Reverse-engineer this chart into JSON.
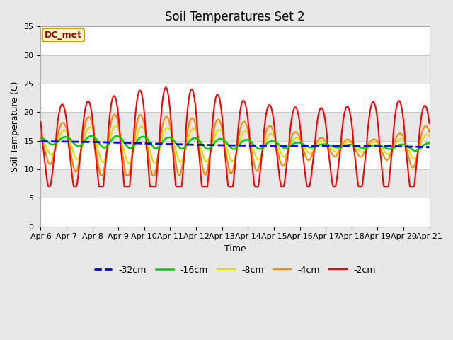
{
  "title": "Soil Temperatures Set 2",
  "xlabel": "Time",
  "ylabel": "Soil Temperature (C)",
  "ylim": [
    0,
    35
  ],
  "x_tick_labels": [
    "Apr 6",
    "Apr 7",
    "Apr 8",
    "Apr 9",
    "Apr 10",
    "Apr 11",
    "Apr 12",
    "Apr 13",
    "Apr 14",
    "Apr 15",
    "Apr 16",
    "Apr 17",
    "Apr 18",
    "Apr 19",
    "Apr 20",
    "Apr 21"
  ],
  "annotation_text": "DC_met",
  "fig_bg_color": "#e8e8e8",
  "plot_bg_color": "#ffffff",
  "grid_color": "#cccccc",
  "band_colors": [
    "#ffffff",
    "#e8e8e8"
  ],
  "series": {
    "-32cm": {
      "color": "#0000ee",
      "linewidth": 2.0,
      "linestyle": "--"
    },
    "-16cm": {
      "color": "#00cc00",
      "linewidth": 1.8,
      "linestyle": "-"
    },
    "-8cm": {
      "color": "#dddd00",
      "linewidth": 1.5,
      "linestyle": "-"
    },
    "-4cm": {
      "color": "#ff8800",
      "linewidth": 1.5,
      "linestyle": "-"
    },
    "-2cm": {
      "color": "#ff0000",
      "linewidth": 1.5,
      "linestyle": "-"
    }
  },
  "title_fontsize": 12,
  "axis_label_fontsize": 9,
  "tick_fontsize": 8,
  "legend_fontsize": 9
}
